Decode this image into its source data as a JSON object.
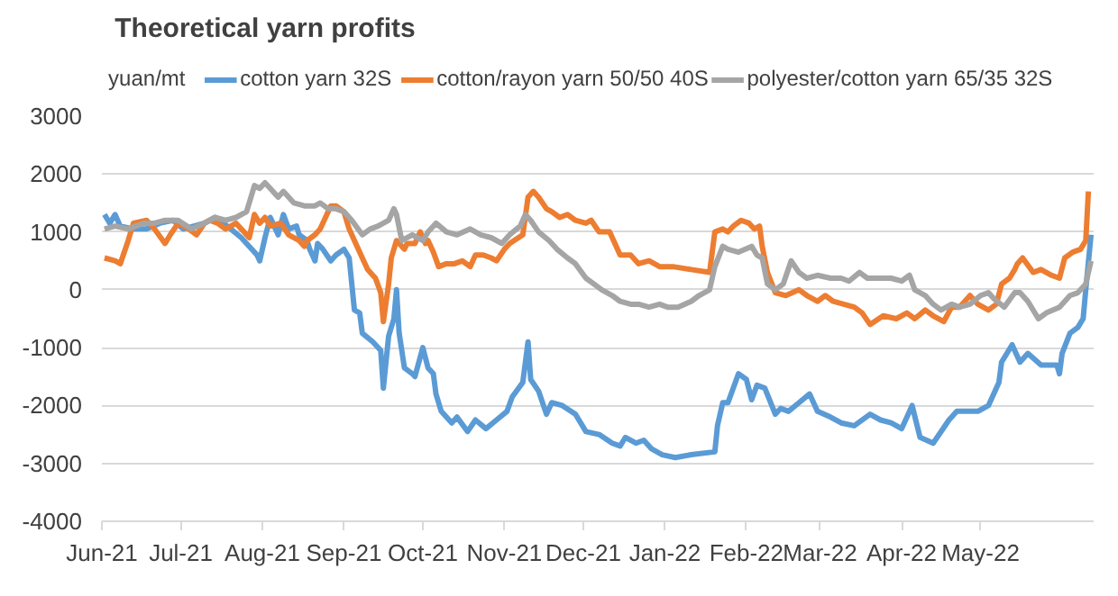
{
  "chart_data": {
    "type": "line",
    "title": "Theoretical yarn profits",
    "ylabel": "yuan/mt",
    "xlim": [
      "2021-06-01",
      "2022-06-13"
    ],
    "ylim": [
      -4000,
      3000
    ],
    "yticks": [
      -4000,
      -3000,
      -2000,
      -1000,
      0,
      1000,
      2000,
      3000
    ],
    "xticks": [
      {
        "value": "2021-06-01",
        "label": "Jun-21"
      },
      {
        "value": "2021-07-01",
        "label": "Jul-21"
      },
      {
        "value": "2021-08-01",
        "label": "Aug-21"
      },
      {
        "value": "2021-09-01",
        "label": "Sep-21"
      },
      {
        "value": "2021-10-01",
        "label": "Oct-21"
      },
      {
        "value": "2021-11-01",
        "label": "Nov-21"
      },
      {
        "value": "2021-12-01",
        "label": "Dec-21"
      },
      {
        "value": "2022-01-01",
        "label": "Jan-22"
      },
      {
        "value": "2022-02-01",
        "label": "Feb-22"
      },
      {
        "value": "2022-03-01",
        "label": "Mar-22"
      },
      {
        "value": "2022-04-01",
        "label": "Apr-22"
      },
      {
        "value": "2022-05-01",
        "label": "May-22"
      }
    ],
    "grid": "y",
    "legend": "top",
    "marker": "none",
    "line_style": "solid",
    "series": [
      {
        "name": "cotton yarn 32S",
        "color": "#5b9bd5",
        "x": [
          "2021-06-02",
          "2021-06-04",
          "2021-06-06",
          "2021-06-08",
          "2021-06-13",
          "2021-06-18",
          "2021-06-23",
          "2021-06-28",
          "2021-07-02",
          "2021-07-06",
          "2021-07-10",
          "2021-07-14",
          "2021-07-16",
          "2021-07-20",
          "2021-07-24",
          "2021-07-26",
          "2021-07-30",
          "2021-07-31",
          "2021-08-02",
          "2021-08-04",
          "2021-08-07",
          "2021-08-09",
          "2021-08-11",
          "2021-08-14",
          "2021-08-15",
          "2021-08-18",
          "2021-08-19",
          "2021-08-21",
          "2021-08-22",
          "2021-08-24",
          "2021-08-27",
          "2021-08-29",
          "2021-09-01",
          "2021-09-03",
          "2021-09-05",
          "2021-09-07",
          "2021-09-08",
          "2021-09-12",
          "2021-09-15",
          "2021-09-16",
          "2021-09-18",
          "2021-09-20",
          "2021-09-21",
          "2021-09-22",
          "2021-09-24",
          "2021-09-27",
          "2021-09-28",
          "2021-10-01",
          "2021-10-03",
          "2021-10-05",
          "2021-10-06",
          "2021-10-08",
          "2021-10-12",
          "2021-10-14",
          "2021-10-18",
          "2021-10-21",
          "2021-10-25",
          "2021-10-29",
          "2021-11-02",
          "2021-11-04",
          "2021-11-08",
          "2021-11-10",
          "2021-11-11",
          "2021-11-14",
          "2021-11-17",
          "2021-11-19",
          "2021-11-23",
          "2021-11-28",
          "2021-12-02",
          "2021-12-07",
          "2021-12-12",
          "2021-12-15",
          "2021-12-17",
          "2021-12-21",
          "2021-12-24",
          "2021-12-27",
          "2021-12-31",
          "2022-01-05",
          "2022-01-11",
          "2022-01-20",
          "2022-01-21",
          "2022-01-23",
          "2022-01-25",
          "2022-01-29",
          "2022-02-01",
          "2022-02-03",
          "2022-02-05",
          "2022-02-08",
          "2022-02-12",
          "2022-02-14",
          "2022-02-17",
          "2022-02-21",
          "2022-02-25",
          "2022-02-28",
          "2022-03-05",
          "2022-03-09",
          "2022-03-14",
          "2022-03-20",
          "2022-03-24",
          "2022-03-28",
          "2022-04-01",
          "2022-04-05",
          "2022-04-08",
          "2022-04-13",
          "2022-04-19",
          "2022-04-22",
          "2022-04-30",
          "2022-05-04",
          "2022-05-08",
          "2022-05-09",
          "2022-05-13",
          "2022-05-16",
          "2022-05-19",
          "2022-05-24",
          "2022-05-30",
          "2022-05-31",
          "2022-06-01",
          "2022-06-04",
          "2022-06-07",
          "2022-06-09",
          "2022-06-10",
          "2022-06-12"
        ],
        "values": [
          1300,
          1150,
          1300,
          1100,
          1050,
          1050,
          1150,
          1200,
          1050,
          1100,
          1150,
          1250,
          1200,
          1050,
          900,
          800,
          600,
          500,
          900,
          1250,
          950,
          1300,
          1050,
          1100,
          950,
          850,
          700,
          500,
          800,
          700,
          500,
          600,
          700,
          550,
          -350,
          -400,
          -750,
          -900,
          -1050,
          -1700,
          -800,
          -500,
          0,
          -750,
          -1350,
          -1450,
          -1500,
          -1000,
          -1350,
          -1450,
          -1800,
          -2100,
          -2300,
          -2200,
          -2450,
          -2250,
          -2400,
          -2250,
          -2100,
          -1850,
          -1600,
          -900,
          -1550,
          -1750,
          -2150,
          -1950,
          -2000,
          -2150,
          -2450,
          -2500,
          -2650,
          -2700,
          -2550,
          -2650,
          -2600,
          -2750,
          -2850,
          -2900,
          -2850,
          -2800,
          -2350,
          -1950,
          -1950,
          -1450,
          -1550,
          -1900,
          -1650,
          -1700,
          -2150,
          -2050,
          -2100,
          -1950,
          -1800,
          -2100,
          -2200,
          -2300,
          -2350,
          -2150,
          -2250,
          -2300,
          -2400,
          -2000,
          -2550,
          -2650,
          -2250,
          -2100,
          -2100,
          -2000,
          -1600,
          -1250,
          -950,
          -1250,
          -1100,
          -1300,
          -1300,
          -1450,
          -1100,
          -750,
          -650,
          -500,
          0,
          950
        ]
      },
      {
        "name": "cotton/rayon yarn 50/50 40S",
        "color": "#ed7d31",
        "x": [
          "2021-06-02",
          "2021-06-06",
          "2021-06-08",
          "2021-06-11",
          "2021-06-13",
          "2021-06-18",
          "2021-06-21",
          "2021-06-25",
          "2021-06-27",
          "2021-06-30",
          "2021-07-04",
          "2021-07-07",
          "2021-07-10",
          "2021-07-12",
          "2021-07-15",
          "2021-07-18",
          "2021-07-22",
          "2021-07-25",
          "2021-07-27",
          "2021-07-29",
          "2021-07-31",
          "2021-08-02",
          "2021-08-04",
          "2021-08-08",
          "2021-08-11",
          "2021-08-15",
          "2021-08-17",
          "2021-08-18",
          "2021-08-21",
          "2021-08-23",
          "2021-08-27",
          "2021-08-29",
          "2021-09-01",
          "2021-09-03",
          "2021-09-05",
          "2021-09-08",
          "2021-09-10",
          "2021-09-13",
          "2021-09-15",
          "2021-09-16",
          "2021-09-18",
          "2021-09-19",
          "2021-09-21",
          "2021-09-24",
          "2021-09-25",
          "2021-09-28",
          "2021-09-30",
          "2021-10-02",
          "2021-10-03",
          "2021-10-05",
          "2021-10-07",
          "2021-10-10",
          "2021-10-13",
          "2021-10-16",
          "2021-10-19",
          "2021-10-21",
          "2021-10-24",
          "2021-10-27",
          "2021-10-29",
          "2021-11-01",
          "2021-11-03",
          "2021-11-08",
          "2021-11-10",
          "2021-11-12",
          "2021-11-14",
          "2021-11-17",
          "2021-11-19",
          "2021-11-22",
          "2021-11-25",
          "2021-11-28",
          "2021-12-02",
          "2021-12-04",
          "2021-12-07",
          "2021-12-11",
          "2021-12-15",
          "2021-12-19",
          "2021-12-22",
          "2021-12-26",
          "2021-12-30",
          "2022-01-04",
          "2022-01-11",
          "2022-01-18",
          "2022-01-20",
          "2022-01-23",
          "2022-01-25",
          "2022-01-27",
          "2022-01-30",
          "2022-02-02",
          "2022-02-04",
          "2022-02-06",
          "2022-02-07",
          "2022-02-09",
          "2022-02-12",
          "2022-02-16",
          "2022-02-21",
          "2022-02-24",
          "2022-02-28",
          "2022-03-03",
          "2022-03-06",
          "2022-03-10",
          "2022-03-14",
          "2022-03-17",
          "2022-03-20",
          "2022-03-25",
          "2022-03-30",
          "2022-04-03",
          "2022-04-06",
          "2022-04-10",
          "2022-04-13",
          "2022-04-17",
          "2022-04-20",
          "2022-04-23",
          "2022-04-27",
          "2022-04-30",
          "2022-05-04",
          "2022-05-07",
          "2022-05-09",
          "2022-05-12",
          "2022-05-14",
          "2022-05-15",
          "2022-05-17",
          "2022-05-21",
          "2022-05-24",
          "2022-05-28",
          "2022-05-31",
          "2022-06-02",
          "2022-06-05",
          "2022-06-08",
          "2022-06-10",
          "2022-06-11"
        ],
        "values": [
          550,
          500,
          450,
          850,
          1150,
          1200,
          1050,
          800,
          950,
          1150,
          1050,
          950,
          1150,
          1200,
          1150,
          1050,
          1150,
          1000,
          900,
          1300,
          1150,
          1250,
          1100,
          1150,
          950,
          850,
          750,
          850,
          950,
          1050,
          1450,
          1450,
          1350,
          1050,
          850,
          550,
          350,
          200,
          -50,
          -550,
          100,
          550,
          850,
          700,
          800,
          800,
          1000,
          800,
          850,
          650,
          400,
          450,
          450,
          500,
          400,
          600,
          600,
          550,
          500,
          700,
          800,
          950,
          1600,
          1700,
          1600,
          1400,
          1350,
          1250,
          1300,
          1200,
          1150,
          1200,
          1000,
          1000,
          600,
          600,
          450,
          500,
          400,
          400,
          350,
          300,
          1000,
          1050,
          1000,
          1100,
          1200,
          1150,
          1050,
          1100,
          750,
          300,
          -50,
          -100,
          0,
          -100,
          -200,
          -100,
          -200,
          -250,
          -300,
          -400,
          -600,
          -450,
          -500,
          -400,
          -500,
          -350,
          -450,
          -550,
          -300,
          -300,
          -100,
          -250,
          -350,
          -250,
          100,
          200,
          350,
          450,
          550,
          300,
          350,
          250,
          200,
          550,
          650,
          700,
          850,
          1700
        ]
      },
      {
        "name": "polyester/cotton yarn 65/35 32S",
        "color": "#a5a5a5",
        "x": [
          "2021-06-02",
          "2021-06-06",
          "2021-06-11",
          "2021-06-17",
          "2021-06-21",
          "2021-06-25",
          "2021-06-30",
          "2021-07-05",
          "2021-07-10",
          "2021-07-14",
          "2021-07-18",
          "2021-07-22",
          "2021-07-26",
          "2021-07-29",
          "2021-07-31",
          "2021-08-02",
          "2021-08-04",
          "2021-08-07",
          "2021-08-09",
          "2021-08-13",
          "2021-08-17",
          "2021-08-21",
          "2021-08-23",
          "2021-08-26",
          "2021-08-29",
          "2021-09-01",
          "2021-09-04",
          "2021-09-08",
          "2021-09-11",
          "2021-09-14",
          "2021-09-18",
          "2021-09-20",
          "2021-09-21",
          "2021-09-23",
          "2021-09-27",
          "2021-10-01",
          "2021-10-03",
          "2021-10-06",
          "2021-10-10",
          "2021-10-14",
          "2021-10-19",
          "2021-10-23",
          "2021-10-27",
          "2021-10-31",
          "2021-11-03",
          "2021-11-07",
          "2021-11-09",
          "2021-11-11",
          "2021-11-14",
          "2021-11-18",
          "2021-11-21",
          "2021-11-25",
          "2021-11-28",
          "2021-12-02",
          "2021-12-05",
          "2021-12-08",
          "2021-12-12",
          "2021-12-15",
          "2021-12-19",
          "2021-12-22",
          "2021-12-26",
          "2021-12-30",
          "2022-01-02",
          "2022-01-06",
          "2022-01-11",
          "2022-01-14",
          "2022-01-18",
          "2022-01-20",
          "2022-01-23",
          "2022-01-25",
          "2022-01-29",
          "2022-02-03",
          "2022-02-05",
          "2022-02-07",
          "2022-02-09",
          "2022-02-12",
          "2022-02-15",
          "2022-02-18",
          "2022-02-21",
          "2022-02-24",
          "2022-02-28",
          "2022-03-05",
          "2022-03-09",
          "2022-03-12",
          "2022-03-16",
          "2022-03-19",
          "2022-03-24",
          "2022-03-28",
          "2022-04-01",
          "2022-04-04",
          "2022-04-06",
          "2022-04-10",
          "2022-04-13",
          "2022-04-16",
          "2022-04-20",
          "2022-04-23",
          "2022-04-27",
          "2022-05-01",
          "2022-05-04",
          "2022-05-06",
          "2022-05-10",
          "2022-05-14",
          "2022-05-16",
          "2022-05-19",
          "2022-05-23",
          "2022-05-26",
          "2022-05-31",
          "2022-06-04",
          "2022-06-07",
          "2022-06-10",
          "2022-06-12"
        ],
        "values": [
          1050,
          1100,
          1050,
          1150,
          1150,
          1200,
          1200,
          1050,
          1150,
          1250,
          1200,
          1250,
          1350,
          1800,
          1750,
          1850,
          1750,
          1600,
          1700,
          1500,
          1450,
          1450,
          1500,
          1400,
          1400,
          1350,
          1200,
          950,
          1050,
          1100,
          1200,
          1400,
          1300,
          850,
          950,
          850,
          1000,
          1150,
          1000,
          950,
          1050,
          950,
          900,
          800,
          950,
          1100,
          1300,
          1200,
          1000,
          850,
          700,
          550,
          450,
          200,
          100,
          0,
          -100,
          -200,
          -250,
          -250,
          -300,
          -250,
          -300,
          -300,
          -200,
          -100,
          0,
          400,
          750,
          700,
          650,
          750,
          600,
          550,
          100,
          0,
          100,
          500,
          300,
          200,
          250,
          200,
          200,
          150,
          300,
          200,
          200,
          200,
          150,
          250,
          0,
          -100,
          -250,
          -350,
          -250,
          -300,
          -250,
          -100,
          -50,
          -150,
          -300,
          -50,
          -50,
          -200,
          -500,
          -400,
          -300,
          -100,
          -50,
          100,
          500
        ]
      }
    ]
  }
}
